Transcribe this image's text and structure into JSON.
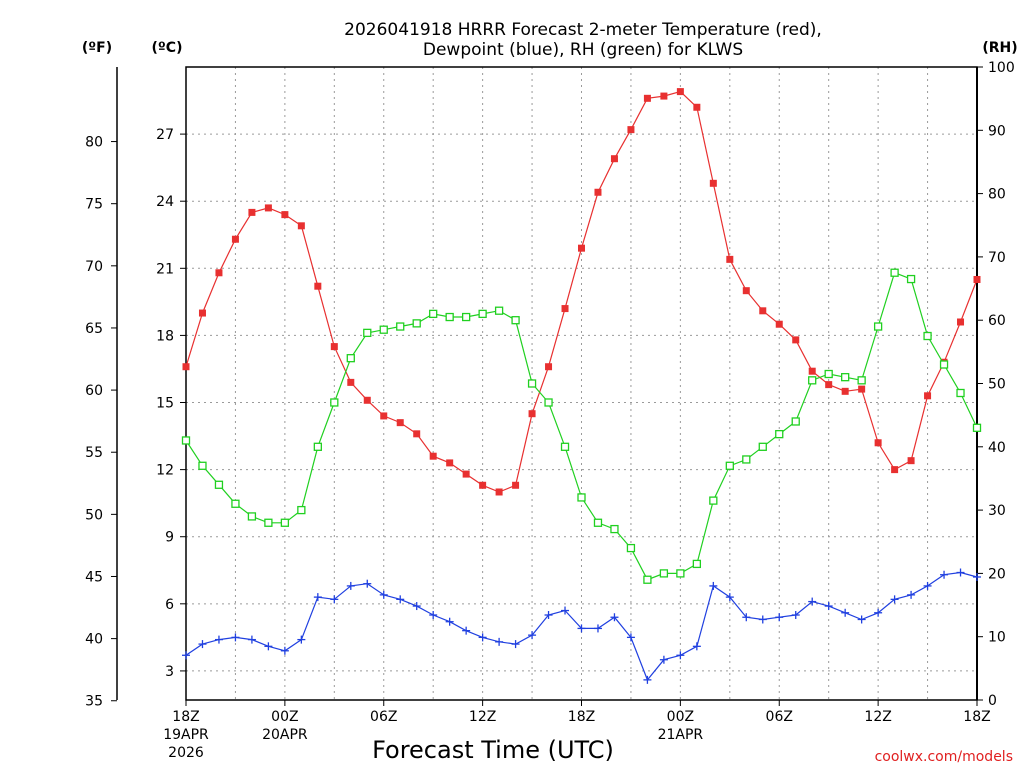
{
  "chart_data": {
    "type": "line",
    "title_line1": "2026041918 HRRR Forecast 2-meter Temperature (red),",
    "title_line2": "Dewpoint (blue), RH (green) for KLWS",
    "units": {
      "fahrenheit": "(ºF)",
      "celsius": "(ºC)",
      "rh": "(RH)"
    },
    "xlabel": "Forecast Time (UTC)",
    "credit": "coolwx.com/models",
    "x_hours_range": [
      0,
      48
    ],
    "x_ticks": [
      {
        "hour": 0,
        "lines": [
          "18Z",
          "19APR",
          "2026"
        ]
      },
      {
        "hour": 6,
        "lines": [
          "00Z",
          "20APR"
        ]
      },
      {
        "hour": 12,
        "lines": [
          "06Z"
        ]
      },
      {
        "hour": 18,
        "lines": [
          "12Z"
        ]
      },
      {
        "hour": 24,
        "lines": [
          "18Z"
        ]
      },
      {
        "hour": 30,
        "lines": [
          "00Z",
          "21APR"
        ]
      },
      {
        "hour": 36,
        "lines": [
          "06Z"
        ]
      },
      {
        "hour": 42,
        "lines": [
          "12Z"
        ]
      },
      {
        "hour": 48,
        "lines": [
          "18Z"
        ]
      }
    ],
    "celsius_range": [
      1.7,
      30.0
    ],
    "celsius_ticks": [
      3,
      6,
      9,
      12,
      15,
      18,
      21,
      24,
      27
    ],
    "fahrenheit_ticks": [
      35,
      40,
      45,
      50,
      55,
      60,
      65,
      70,
      75,
      80
    ],
    "rh_range": [
      0,
      100
    ],
    "rh_ticks": [
      0,
      10,
      20,
      30,
      40,
      50,
      60,
      70,
      80,
      90,
      100
    ],
    "series": [
      {
        "name": "2-meter Temperature",
        "axis": "celsius",
        "color": "#e83030",
        "marker": "filled-square",
        "values": [
          16.6,
          19.0,
          20.8,
          22.3,
          23.5,
          23.7,
          23.4,
          22.9,
          20.2,
          17.5,
          15.9,
          15.1,
          14.4,
          14.1,
          13.6,
          12.6,
          12.3,
          11.8,
          11.3,
          11.0,
          11.3,
          14.5,
          16.6,
          19.2,
          21.9,
          24.4,
          25.9,
          27.2,
          28.6,
          28.7,
          28.9,
          28.2,
          24.8,
          21.4,
          20.0,
          19.1,
          18.5,
          17.8,
          16.4,
          15.8,
          15.5,
          15.6,
          13.2,
          12.0,
          12.4,
          15.3,
          16.8,
          18.6,
          20.5
        ]
      },
      {
        "name": "Dewpoint",
        "axis": "celsius",
        "color": "#2040e0",
        "marker": "plus",
        "values": [
          3.7,
          4.2,
          4.4,
          4.5,
          4.4,
          4.1,
          3.9,
          4.4,
          6.3,
          6.2,
          6.8,
          6.9,
          6.4,
          6.2,
          5.9,
          5.5,
          5.2,
          4.8,
          4.5,
          4.3,
          4.2,
          4.6,
          5.5,
          5.7,
          4.9,
          4.9,
          5.4,
          4.5,
          2.6,
          3.5,
          3.7,
          4.1,
          6.8,
          6.3,
          5.4,
          5.3,
          5.4,
          5.5,
          6.1,
          5.9,
          5.6,
          5.3,
          5.6,
          6.2,
          6.4,
          6.8,
          7.3,
          7.4,
          7.2
        ]
      },
      {
        "name": "RH",
        "axis": "rh",
        "color": "#20d020",
        "marker": "open-square",
        "values": [
          41,
          37,
          34,
          31,
          29,
          28,
          28,
          30,
          40,
          47,
          54,
          58,
          58.5,
          59,
          59.5,
          61,
          60.5,
          60.5,
          61,
          61.5,
          60,
          50,
          47,
          40,
          32,
          28,
          27,
          24,
          19,
          20,
          20,
          21.5,
          31.5,
          37,
          38,
          40,
          42,
          44,
          50.5,
          51.5,
          51,
          50.5,
          59,
          67.5,
          66.5,
          57.5,
          53,
          48.5,
          43
        ]
      }
    ]
  }
}
